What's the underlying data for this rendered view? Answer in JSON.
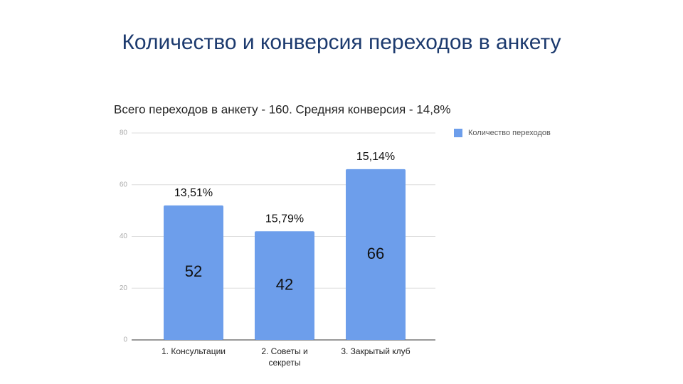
{
  "slide_title": "Количество и конверсия переходов в анкету",
  "chart_data": {
    "type": "bar",
    "title": "Всего переходов в анкету - 160. Средняя конверсия - 14,8%",
    "categories": [
      "1. Консультации",
      "2. Советы и секреты",
      "3. Закрытый клуб"
    ],
    "series": [
      {
        "name": "Количество переходов",
        "color": "#6d9eeb",
        "values": [
          52,
          42,
          66
        ]
      }
    ],
    "annotations": [
      "13,51%",
      "15,79%",
      "15,14%"
    ],
    "ylim": [
      0,
      80
    ],
    "yticks": [
      0,
      20,
      40,
      60,
      80
    ],
    "grid": true,
    "legend": "right"
  }
}
